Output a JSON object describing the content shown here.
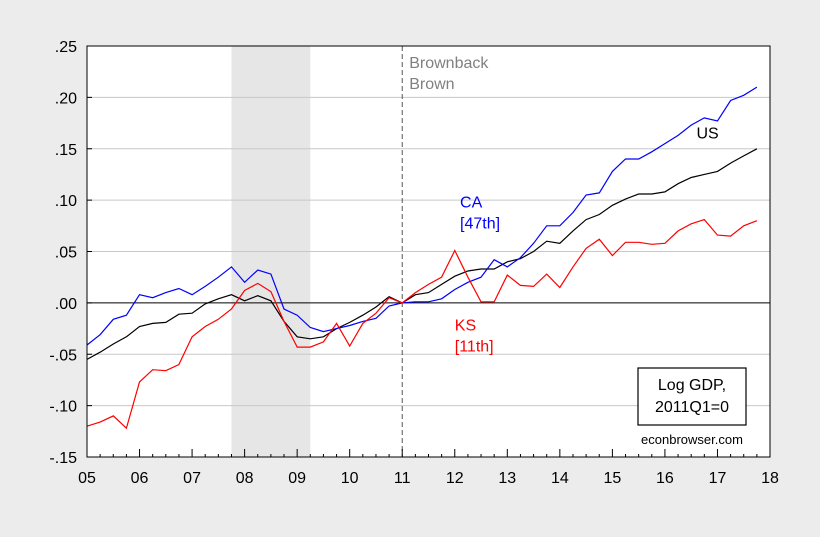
{
  "chart_data": {
    "type": "line",
    "title": "",
    "xlabel": "",
    "ylabel": "",
    "xlim": [
      2005.0,
      2018.0
    ],
    "ylim": [
      -0.15,
      0.25
    ],
    "y_ticks": [
      ".25",
      ".20",
      ".15",
      ".10",
      ".05",
      ".00",
      "-.05",
      "-.10",
      "-.15"
    ],
    "y_tick_values": [
      0.25,
      0.2,
      0.15,
      0.1,
      0.05,
      0.0,
      -0.05,
      -0.1,
      -0.15
    ],
    "x_ticks": [
      "05",
      "06",
      "07",
      "08",
      "09",
      "10",
      "11",
      "12",
      "13",
      "14",
      "15",
      "16",
      "17",
      "18"
    ],
    "x_tick_values": [
      2005,
      2006,
      2007,
      2008,
      2009,
      2010,
      2011,
      2012,
      2013,
      2014,
      2015,
      2016,
      2017,
      2018
    ],
    "grid": true,
    "recession_shade": [
      2007.75,
      2009.25
    ],
    "vline_x": 2011.0,
    "vline_labels": [
      "Brownback",
      "Brown"
    ],
    "zero_line": true,
    "legend_box": [
      "Log GDP,",
      "2011Q1=0"
    ],
    "source_note": "econbrowser.com",
    "series_labels": [
      {
        "series": "US",
        "lines": [
          "US"
        ],
        "x": 2016.6,
        "y": 0.16,
        "color": "#000000"
      },
      {
        "series": "CA",
        "lines": [
          "CA",
          "[47th]"
        ],
        "x": 2012.1,
        "y": 0.093,
        "color": "#0000ff"
      },
      {
        "series": "KS",
        "lines": [
          "KS",
          "[11th]"
        ],
        "x": 2012.0,
        "y": -0.027,
        "color": "#ff0000"
      }
    ],
    "x": [
      2005.0,
      2005.25,
      2005.5,
      2005.75,
      2006.0,
      2006.25,
      2006.5,
      2006.75,
      2007.0,
      2007.25,
      2007.5,
      2007.75,
      2008.0,
      2008.25,
      2008.5,
      2008.75,
      2009.0,
      2009.25,
      2009.5,
      2009.75,
      2010.0,
      2010.25,
      2010.5,
      2010.75,
      2011.0,
      2011.25,
      2011.5,
      2011.75,
      2012.0,
      2012.25,
      2012.5,
      2012.75,
      2013.0,
      2013.25,
      2013.5,
      2013.75,
      2014.0,
      2014.25,
      2014.5,
      2014.75,
      2015.0,
      2015.25,
      2015.5,
      2015.75,
      2016.0,
      2016.25,
      2016.5,
      2016.75,
      2017.0,
      2017.25,
      2017.5,
      2017.75
    ],
    "series": [
      {
        "name": "US",
        "color": "#000000",
        "values": [
          -0.055,
          -0.048,
          -0.04,
          -0.033,
          -0.023,
          -0.02,
          -0.019,
          -0.011,
          -0.01,
          -0.001,
          0.004,
          0.008,
          0.002,
          0.007,
          0.002,
          -0.018,
          -0.033,
          -0.035,
          -0.033,
          -0.025,
          -0.019,
          -0.012,
          -0.004,
          0.006,
          0.0,
          0.008,
          0.01,
          0.018,
          0.026,
          0.031,
          0.033,
          0.033,
          0.04,
          0.043,
          0.05,
          0.06,
          0.058,
          0.07,
          0.081,
          0.086,
          0.095,
          0.101,
          0.106,
          0.106,
          0.108,
          0.116,
          0.122,
          0.125,
          0.128,
          0.136,
          0.143,
          0.15
        ]
      },
      {
        "name": "CA",
        "color": "#0000ff",
        "values": [
          -0.041,
          -0.031,
          -0.016,
          -0.012,
          0.008,
          0.005,
          0.01,
          0.014,
          0.008,
          0.016,
          0.025,
          0.035,
          0.02,
          0.032,
          0.028,
          -0.006,
          -0.012,
          -0.024,
          -0.028,
          -0.025,
          -0.022,
          -0.018,
          -0.015,
          -0.003,
          0.0,
          0.001,
          0.001,
          0.004,
          0.013,
          0.02,
          0.025,
          0.042,
          0.035,
          0.044,
          0.058,
          0.075,
          0.075,
          0.088,
          0.105,
          0.107,
          0.128,
          0.14,
          0.14,
          0.147,
          0.155,
          0.163,
          0.173,
          0.18,
          0.177,
          0.197,
          0.202,
          0.21
        ]
      },
      {
        "name": "KS",
        "color": "#ff0000",
        "values": [
          -0.12,
          -0.116,
          -0.11,
          -0.122,
          -0.077,
          -0.065,
          -0.066,
          -0.06,
          -0.033,
          -0.023,
          -0.016,
          -0.006,
          0.012,
          0.019,
          0.011,
          -0.018,
          -0.043,
          -0.043,
          -0.038,
          -0.02,
          -0.042,
          -0.02,
          -0.01,
          0.005,
          0.0,
          0.01,
          0.018,
          0.025,
          0.051,
          0.025,
          0.001,
          0.001,
          0.027,
          0.017,
          0.016,
          0.028,
          0.015,
          0.035,
          0.053,
          0.062,
          0.046,
          0.059,
          0.059,
          0.057,
          0.058,
          0.07,
          0.077,
          0.081,
          0.066,
          0.065,
          0.075,
          0.08
        ]
      }
    ]
  }
}
